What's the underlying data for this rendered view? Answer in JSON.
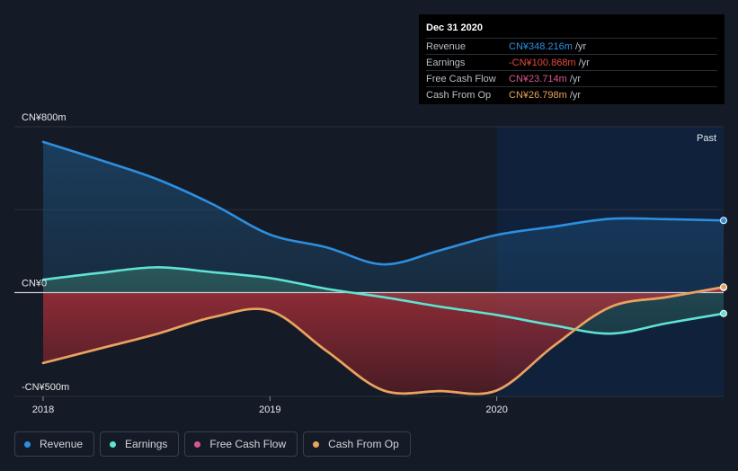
{
  "chart_data": {
    "type": "line",
    "x_ticks": [
      "2018",
      "2019",
      "2020"
    ],
    "y_ticks": [
      {
        "label": "CN¥800m",
        "value": 800
      },
      {
        "label": "CN¥0",
        "value": 0
      },
      {
        "label": "-CN¥500m",
        "value": -500
      }
    ],
    "ylim": [
      -500,
      800
    ],
    "xlim": [
      2018.0,
      2021.0
    ],
    "past_label": "Past",
    "grid": true,
    "series": [
      {
        "name": "Revenue",
        "color": "#2d8fe0",
        "points": [
          [
            2018.0,
            727
          ],
          [
            2018.25,
            640
          ],
          [
            2018.5,
            548
          ],
          [
            2018.75,
            425
          ],
          [
            2019.0,
            280
          ],
          [
            2019.25,
            218
          ],
          [
            2019.5,
            136
          ],
          [
            2019.75,
            204
          ],
          [
            2020.0,
            278
          ],
          [
            2020.25,
            318
          ],
          [
            2020.5,
            356
          ],
          [
            2020.75,
            354
          ],
          [
            2021.0,
            348
          ]
        ]
      },
      {
        "name": "Earnings",
        "color": "#5fe3d2",
        "points": [
          [
            2018.0,
            62
          ],
          [
            2018.25,
            95
          ],
          [
            2018.5,
            122
          ],
          [
            2018.75,
            98
          ],
          [
            2019.0,
            70
          ],
          [
            2019.25,
            18
          ],
          [
            2019.5,
            -22
          ],
          [
            2019.75,
            -68
          ],
          [
            2020.0,
            -108
          ],
          [
            2020.25,
            -158
          ],
          [
            2020.5,
            -198
          ],
          [
            2020.75,
            -148
          ],
          [
            2021.0,
            -101
          ]
        ]
      },
      {
        "name": "Free Cash Flow",
        "color": "#d9578a",
        "points": [
          [
            2018.0,
            -340
          ],
          [
            2018.25,
            -270
          ],
          [
            2018.5,
            -200
          ],
          [
            2018.75,
            -118
          ],
          [
            2019.0,
            -88
          ],
          [
            2019.25,
            -282
          ],
          [
            2019.5,
            -472
          ],
          [
            2019.75,
            -475
          ],
          [
            2020.0,
            -472
          ],
          [
            2020.25,
            -258
          ],
          [
            2020.5,
            -70
          ],
          [
            2020.75,
            -22
          ],
          [
            2021.0,
            24
          ]
        ]
      },
      {
        "name": "Cash From Op",
        "color": "#e8a45c",
        "points": [
          [
            2018.0,
            -340
          ],
          [
            2018.25,
            -270
          ],
          [
            2018.5,
            -200
          ],
          [
            2018.75,
            -118
          ],
          [
            2019.0,
            -88
          ],
          [
            2019.25,
            -282
          ],
          [
            2019.5,
            -472
          ],
          [
            2019.75,
            -475
          ],
          [
            2020.0,
            -472
          ],
          [
            2020.25,
            -258
          ],
          [
            2020.5,
            -70
          ],
          [
            2020.75,
            -22
          ],
          [
            2021.0,
            27
          ]
        ]
      }
    ]
  },
  "tooltip": {
    "date": "Dec 31 2020",
    "unit": "/yr",
    "rows": [
      {
        "label": "Revenue",
        "value": "CN¥348.216m",
        "color": "#2d8fe0"
      },
      {
        "label": "Earnings",
        "value": "-CN¥100.868m",
        "color": "#e8483f"
      },
      {
        "label": "Free Cash Flow",
        "value": "CN¥23.714m",
        "color": "#d9578a"
      },
      {
        "label": "Cash From Op",
        "value": "CN¥26.798m",
        "color": "#e8a45c"
      }
    ]
  },
  "legend": [
    {
      "label": "Revenue",
      "color": "#2d8fe0"
    },
    {
      "label": "Earnings",
      "color": "#5fe3d2"
    },
    {
      "label": "Free Cash Flow",
      "color": "#d9578a"
    },
    {
      "label": "Cash From Op",
      "color": "#e8a45c"
    }
  ]
}
